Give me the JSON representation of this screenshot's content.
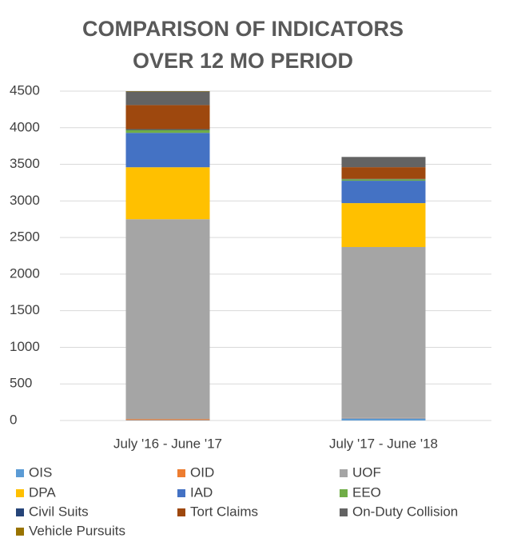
{
  "chart_data": {
    "type": "stacked_bar",
    "title": [
      "COMPARISON OF INDICATORS",
      "OVER 12 MO PERIOD"
    ],
    "categories": [
      "July '16 - June '17",
      "July '17 - June '18"
    ],
    "series": [
      {
        "name": "OIS",
        "color": "#5b9bd5",
        "values": [
          5,
          30
        ]
      },
      {
        "name": "OID",
        "color": "#ed7d31",
        "values": [
          15,
          5
        ]
      },
      {
        "name": "UOF",
        "color": "#a5a5a5",
        "values": [
          2730,
          2335
        ]
      },
      {
        "name": "DPA",
        "color": "#ffc000",
        "values": [
          710,
          600
        ]
      },
      {
        "name": "IAD",
        "color": "#4472c4",
        "values": [
          470,
          306
        ]
      },
      {
        "name": "EEO",
        "color": "#70ad47",
        "values": [
          40,
          20
        ]
      },
      {
        "name": "Civil Suits",
        "color": "#264478",
        "values": [
          10,
          5
        ]
      },
      {
        "name": "Tort Claims",
        "color": "#9e480e",
        "values": [
          330,
          160
        ]
      },
      {
        "name": "On-Duty Collision",
        "color": "#636363",
        "values": [
          185,
          140
        ]
      },
      {
        "name": "Vehicle Pursuits",
        "color": "#997300",
        "values": [
          5,
          0
        ]
      }
    ],
    "ylim": [
      0,
      4500
    ],
    "yticks": [
      0,
      500,
      1000,
      1500,
      2000,
      2500,
      3000,
      3500,
      4000,
      4500
    ],
    "grid": true,
    "legend": "bottom"
  }
}
